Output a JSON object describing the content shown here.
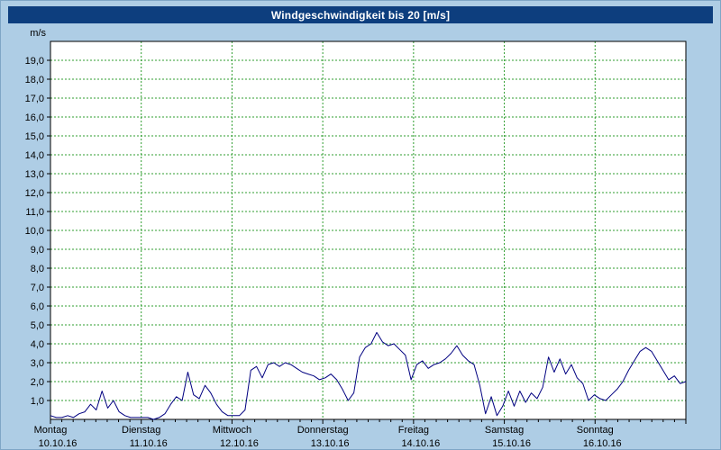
{
  "colors": {
    "frame": "#aecde5",
    "titlebar": "#0d3e7e",
    "title_text": "#ffffff",
    "plot_bg": "#ffffff",
    "axis": "#000000",
    "grid": "#2f9e2f",
    "line": "#000080"
  },
  "chart_data": {
    "type": "line",
    "title": "Windgeschwindigkeit bis 20 [m/s]",
    "xlabel": "",
    "ylabel": "m/s",
    "ylim": [
      0,
      20
    ],
    "ytick_step": 1,
    "ytick_label_min": 1,
    "ytick_label_max": 19,
    "decimal_separator": "comma",
    "grid": true,
    "legend": "none",
    "days": [
      {
        "name": "Montag",
        "date": "10.10.16"
      },
      {
        "name": "Dienstag",
        "date": "11.10.16"
      },
      {
        "name": "Mittwoch",
        "date": "12.10.16"
      },
      {
        "name": "Donnerstag",
        "date": "13.10.16"
      },
      {
        "name": "Freitag",
        "date": "14.10.16"
      },
      {
        "name": "Samstag",
        "date": "15.10.16"
      },
      {
        "name": "Sonntag",
        "date": "16.10.16"
      }
    ],
    "points_per_day": 16,
    "series": [
      {
        "name": "Windgeschwindigkeit",
        "values": [
          0.2,
          0.1,
          0.1,
          0.2,
          0.1,
          0.3,
          0.4,
          0.8,
          0.5,
          1.5,
          0.6,
          1.0,
          0.4,
          0.2,
          0.1,
          0.1,
          0.1,
          0.1,
          0.0,
          0.1,
          0.3,
          0.8,
          1.2,
          1.0,
          2.5,
          1.3,
          1.1,
          1.8,
          1.4,
          0.8,
          0.4,
          0.2,
          0.2,
          0.2,
          0.5,
          2.6,
          2.8,
          2.2,
          2.9,
          3.0,
          2.8,
          3.0,
          2.9,
          2.7,
          2.5,
          2.4,
          2.3,
          2.1,
          2.2,
          2.4,
          2.1,
          1.6,
          1.0,
          1.4,
          3.3,
          3.8,
          4.0,
          4.6,
          4.1,
          3.9,
          4.0,
          3.7,
          3.4,
          2.1,
          2.9,
          3.1,
          2.7,
          2.9,
          3.0,
          3.2,
          3.5,
          3.9,
          3.4,
          3.1,
          2.9,
          1.8,
          0.3,
          1.2,
          0.2,
          0.7,
          1.5,
          0.7,
          1.5,
          0.9,
          1.4,
          1.1,
          1.7,
          3.3,
          2.5,
          3.2,
          2.4,
          2.9,
          2.2,
          1.9,
          1.0,
          1.3,
          1.1,
          1.0,
          1.3,
          1.6,
          2.0,
          2.6,
          3.1,
          3.6,
          3.8,
          3.6,
          3.1,
          2.6,
          2.1,
          2.3,
          1.9,
          2.0
        ]
      }
    ]
  }
}
